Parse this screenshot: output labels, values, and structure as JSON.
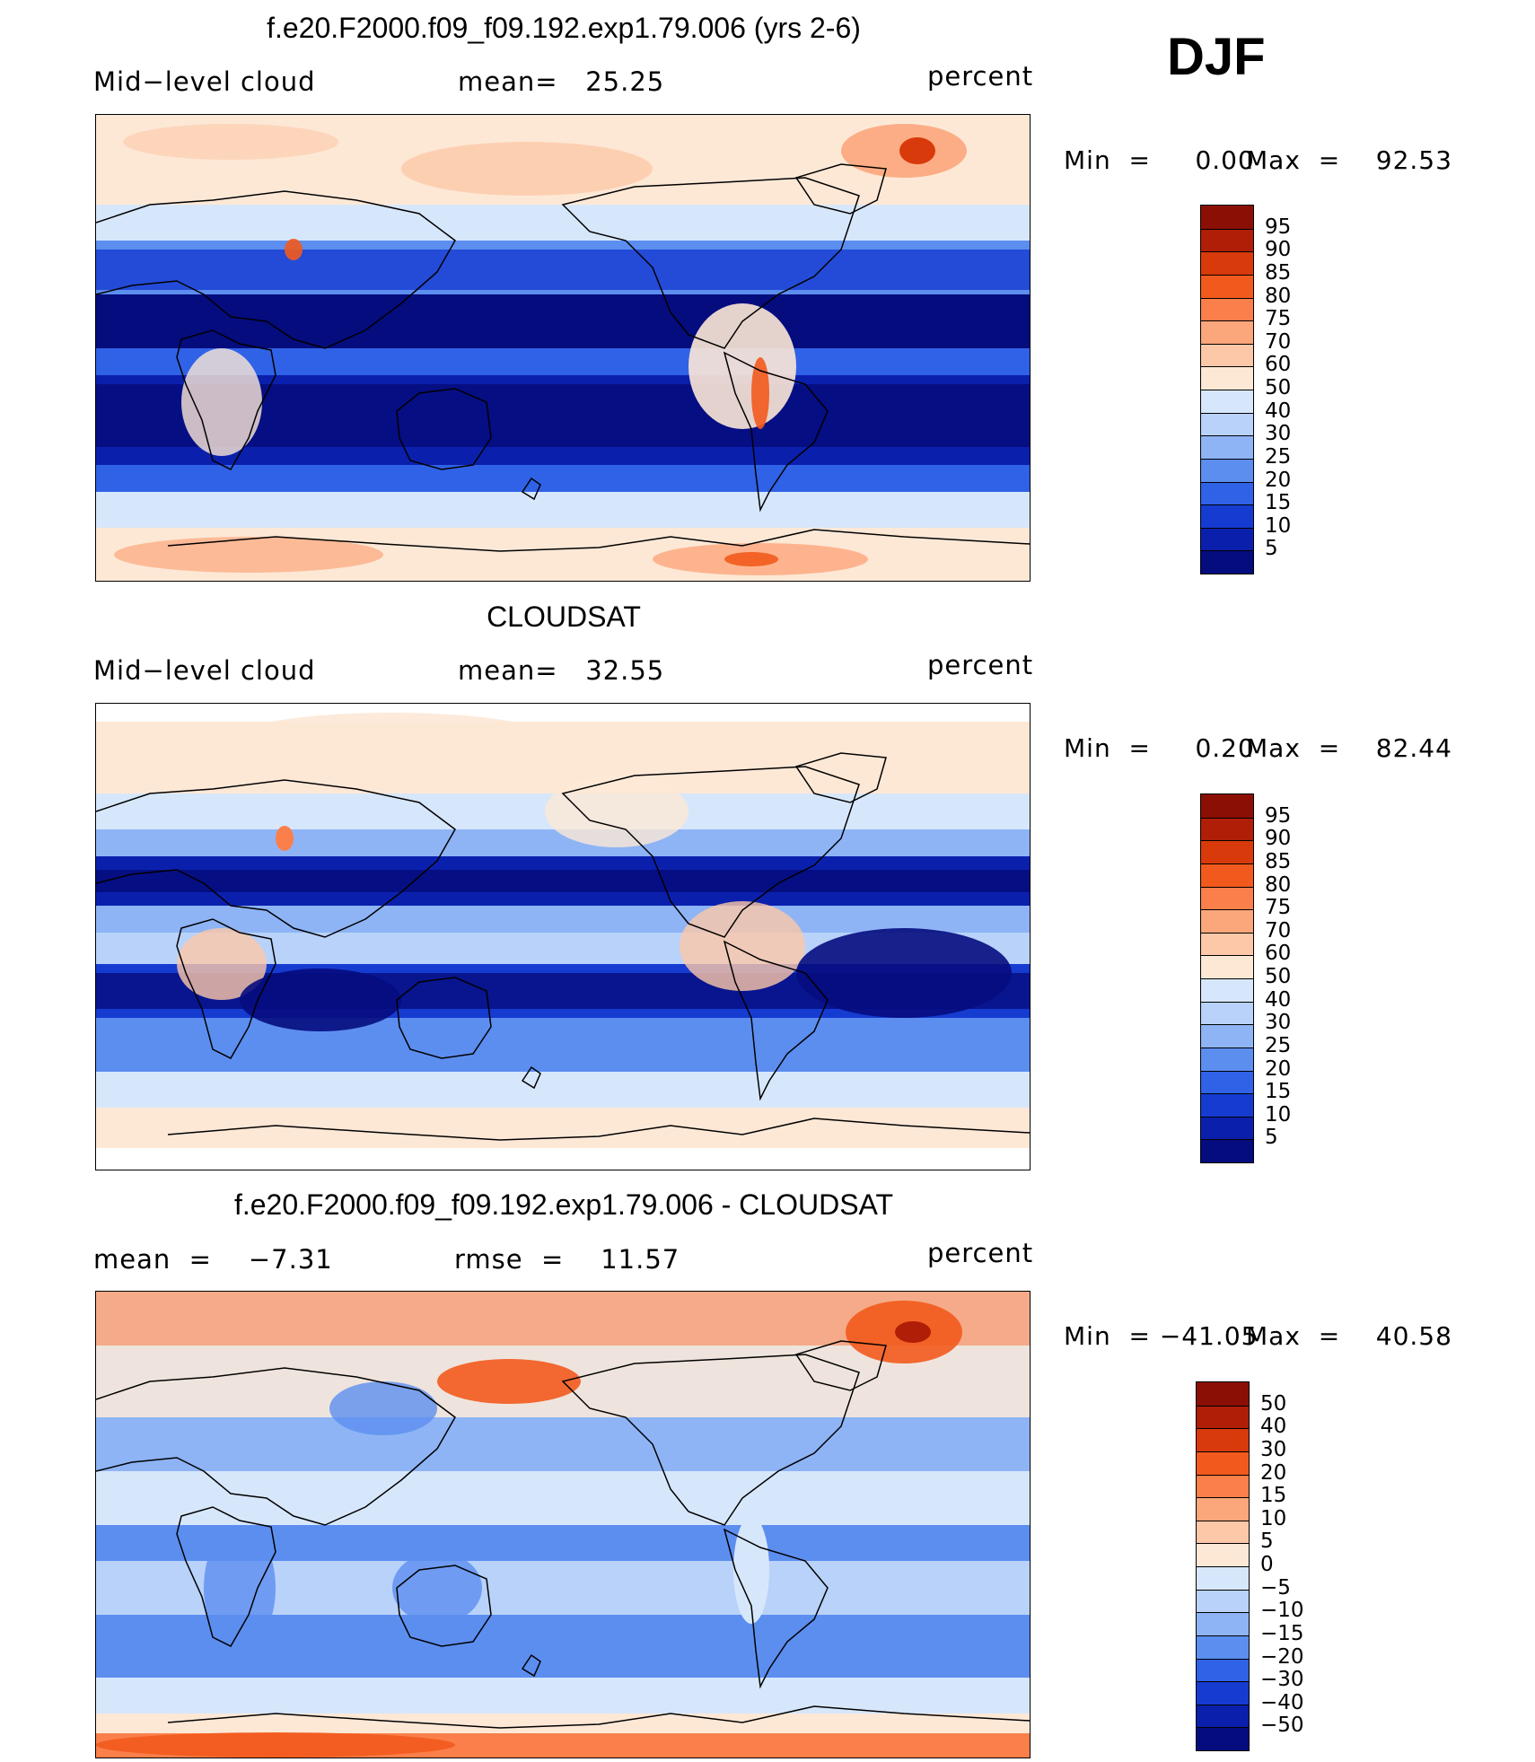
{
  "season": "DJF",
  "panels": [
    {
      "title": "f.e20.F2000.f09_f09.192.exp1.79.006 (yrs 2-6)",
      "left_label": "Mid−level cloud",
      "center_label": "mean=   25.25",
      "units": "percent",
      "min_text": "Min  =     0.00",
      "max_text": "Max  =    92.53",
      "colorbar_labels": [
        "95",
        "90",
        "85",
        "80",
        "75",
        "70",
        "60",
        "50",
        "40",
        "30",
        "25",
        "20",
        "15",
        "10",
        "5"
      ],
      "colorbar_colors": [
        "#8b0f05",
        "#b01e08",
        "#d93a0b",
        "#f25a1d",
        "#fb7f4a",
        "#fca67c",
        "#fdc8a8",
        "#fde8d6",
        "#d7e7fb",
        "#b8d2fa",
        "#8eb4f6",
        "#5c8ef0",
        "#2f62e6",
        "#153bd1",
        "#0a20ad",
        "#050c7e"
      ],
      "mean_value": 25.25,
      "map_style": "model"
    },
    {
      "title": "CLOUDSAT",
      "left_label": "Mid−level cloud",
      "center_label": "mean=   32.55",
      "units": "percent",
      "min_text": "Min  =     0.20",
      "max_text": "Max  =    82.44",
      "colorbar_labels": [
        "95",
        "90",
        "85",
        "80",
        "75",
        "70",
        "60",
        "50",
        "40",
        "30",
        "25",
        "20",
        "15",
        "10",
        "5"
      ],
      "colorbar_colors": [
        "#8b0f05",
        "#b01e08",
        "#d93a0b",
        "#f25a1d",
        "#fb7f4a",
        "#fca67c",
        "#fdc8a8",
        "#fde8d6",
        "#d7e7fb",
        "#b8d2fa",
        "#8eb4f6",
        "#5c8ef0",
        "#2f62e6",
        "#153bd1",
        "#0a20ad",
        "#050c7e"
      ],
      "mean_value": 32.55,
      "map_style": "obs"
    },
    {
      "title": "f.e20.F2000.f09_f09.192.exp1.79.006 - CLOUDSAT",
      "left_label": "mean  =    −7.31",
      "center_label": "rmse  =    11.57",
      "units": "percent",
      "min_text": "Min  = −41.05",
      "max_text": "Max  =    40.58",
      "colorbar_labels": [
        "50",
        "40",
        "30",
        "20",
        "15",
        "10",
        "5",
        "0",
        "−5",
        "−10",
        "−15",
        "−20",
        "−30",
        "−40",
        "−50"
      ],
      "colorbar_colors": [
        "#8b0f05",
        "#b01e08",
        "#d93a0b",
        "#f25a1d",
        "#fb7f4a",
        "#fca67c",
        "#fdc8a8",
        "#fde8d6",
        "#d7e7fb",
        "#b8d2fa",
        "#8eb4f6",
        "#5c8ef0",
        "#2f62e6",
        "#153bd1",
        "#0a20ad",
        "#050c7e"
      ],
      "mean_value": -7.31,
      "map_style": "diff"
    }
  ]
}
